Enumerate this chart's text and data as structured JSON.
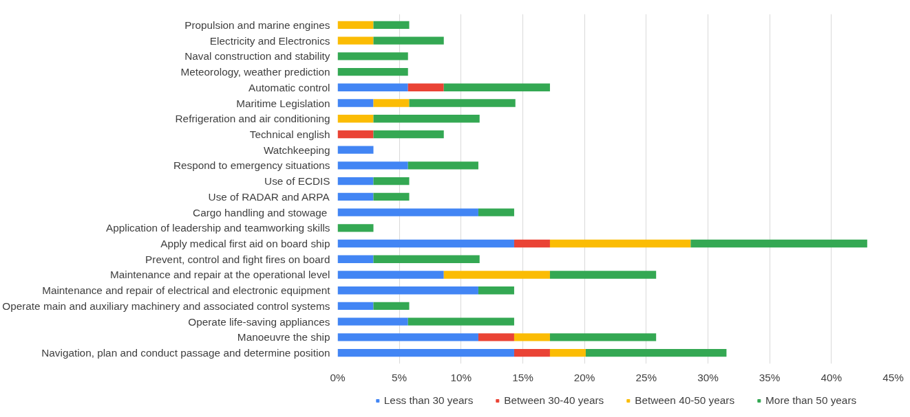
{
  "chart_data": {
    "type": "bar",
    "orientation": "horizontal",
    "stacked": true,
    "categories": [
      "Propulsion and marine engines",
      "Electricity and Electronics",
      "Naval construction and stability",
      "Meteorology, weather prediction",
      "Automatic control",
      "Maritime Legislation",
      "Refrigeration and air conditioning",
      "Technical english",
      "Watchkeeping",
      "Respond to emergency situations",
      "Use of ECDIS",
      "Use of RADAR and ARPA",
      "Cargo handling and stowage ",
      "Application of leadership and teamworking skills",
      "Apply medical first aid on board ship",
      "Prevent, control and fight fires on board",
      "Maintenance and repair at the operational level",
      "Maintenance and repair of electrical and electronic equipment",
      "Operate main and auxiliary machinery and associated control systems",
      "Operate life-saving appliances",
      "Manoeuvre the ship",
      "Navigation, plan and conduct passage and determine position"
    ],
    "series": [
      {
        "name": "Less than 30 years",
        "color": "#4285f4",
        "values": [
          0,
          0,
          0,
          0,
          5.7,
          2.9,
          0,
          0,
          2.9,
          5.7,
          2.9,
          2.9,
          11.4,
          0,
          14.3,
          2.9,
          8.6,
          11.4,
          2.9,
          5.7,
          11.4,
          14.3
        ]
      },
      {
        "name": "Between 30-40 years",
        "color": "#ea4335",
        "values": [
          0,
          0,
          0,
          0,
          2.9,
          0,
          0,
          2.9,
          0,
          0,
          0,
          0,
          0,
          0,
          2.9,
          0,
          0,
          0,
          0,
          0,
          2.9,
          2.9
        ]
      },
      {
        "name": "Between 40-50 years",
        "color": "#fbbc04",
        "values": [
          2.9,
          2.9,
          0,
          0,
          0,
          2.9,
          2.9,
          0,
          0,
          0,
          0,
          0,
          0,
          0,
          11.4,
          0,
          8.6,
          0,
          0,
          0,
          2.9,
          2.9
        ]
      },
      {
        "name": "More than 50 years",
        "color": "#34a853",
        "values": [
          2.9,
          5.7,
          5.7,
          5.7,
          8.6,
          8.6,
          8.6,
          5.7,
          0,
          5.7,
          2.9,
          2.9,
          2.9,
          2.9,
          14.3,
          8.6,
          8.6,
          2.9,
          2.9,
          8.6,
          8.6,
          11.4
        ]
      }
    ],
    "xlim": [
      0,
      45
    ],
    "xticks": [
      {
        "value": 0,
        "label": "0%"
      },
      {
        "value": 5,
        "label": "5%"
      },
      {
        "value": 10,
        "label": "10%"
      },
      {
        "value": 15,
        "label": "15%"
      },
      {
        "value": 20,
        "label": "20%"
      },
      {
        "value": 25,
        "label": "25%"
      },
      {
        "value": 30,
        "label": "30%"
      },
      {
        "value": 35,
        "label": "35%"
      },
      {
        "value": 40,
        "label": "40%"
      },
      {
        "value": 45,
        "label": "45%"
      }
    ],
    "grid": "x",
    "legend": "bottom"
  }
}
